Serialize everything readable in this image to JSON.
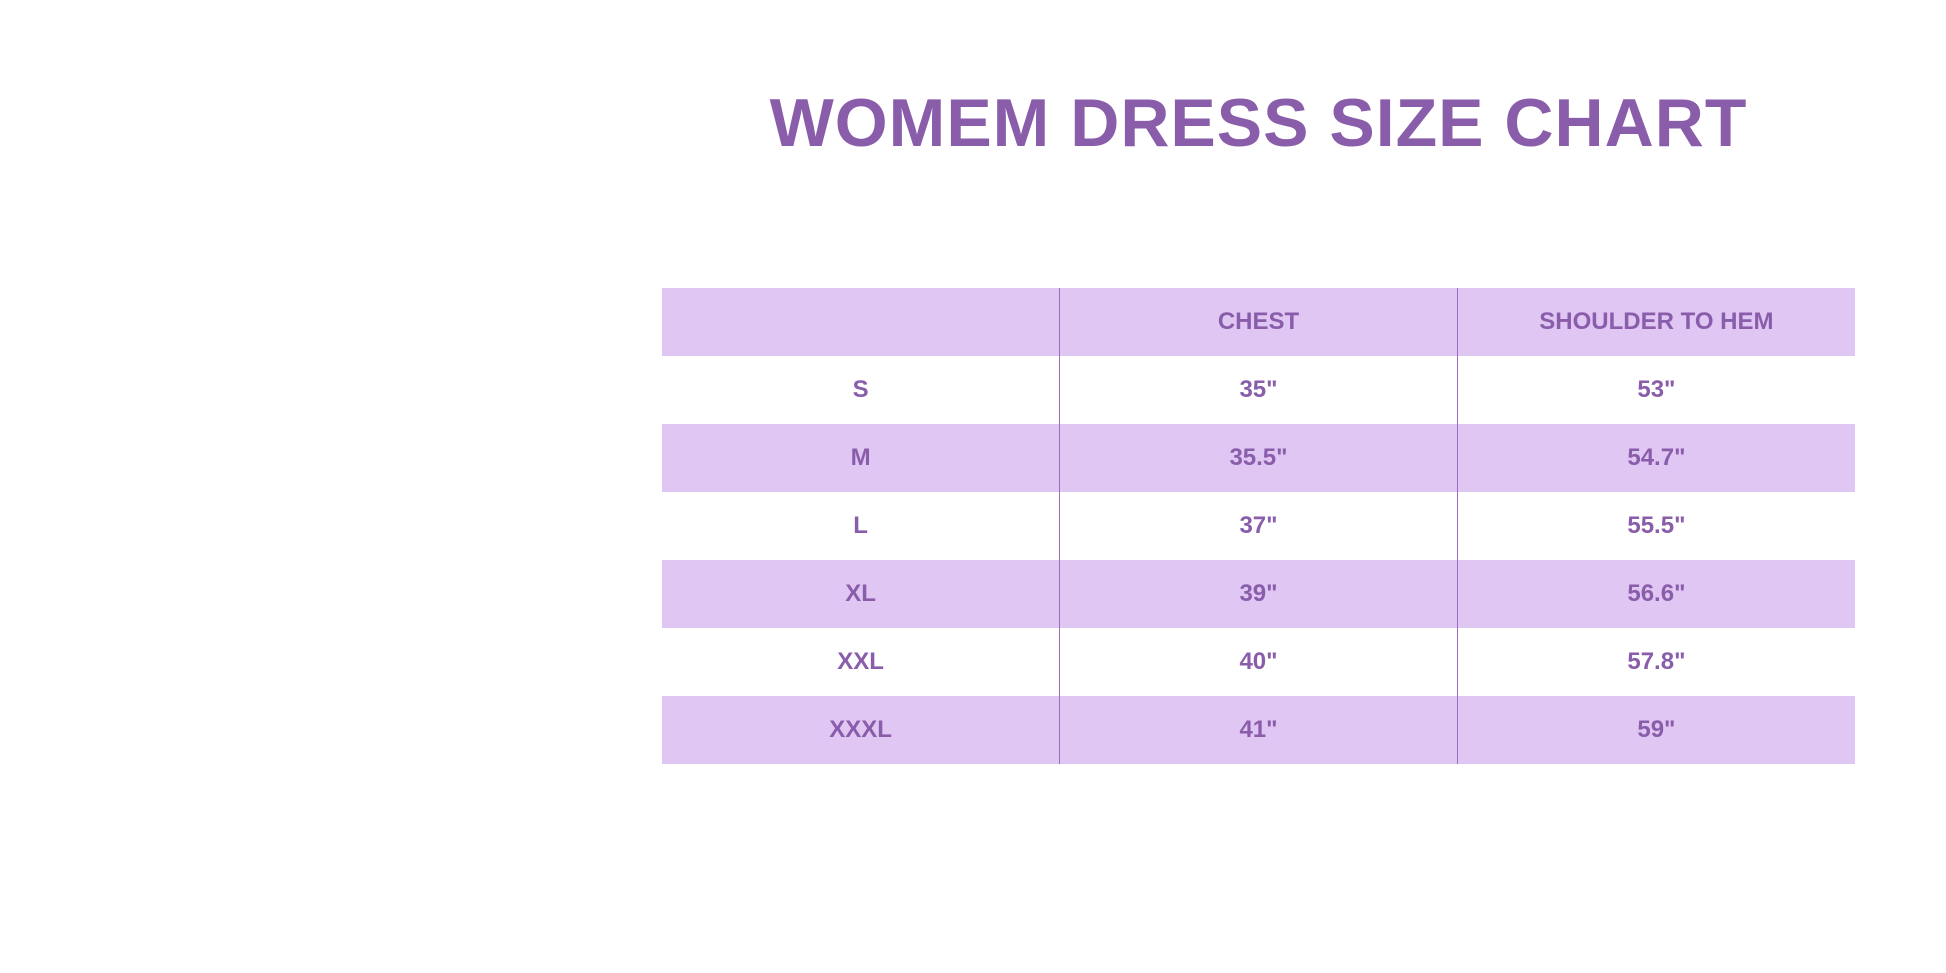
{
  "title": "WOMEM DRESS SIZE CHART",
  "colors": {
    "text": "#8A5DAB",
    "band": "#E0C6F3"
  },
  "table": {
    "headers": [
      "",
      "CHEST",
      "SHOULDER TO HEM"
    ],
    "rows": [
      [
        "S",
        "35\"",
        "53\""
      ],
      [
        "M",
        "35.5\"",
        "54.7\""
      ],
      [
        "L",
        "37\"",
        "55.5\""
      ],
      [
        "XL",
        "39\"",
        "56.6\""
      ],
      [
        "XXL",
        "40\"",
        "57.8\""
      ],
      [
        "XXXL",
        "41\"",
        "59\""
      ]
    ]
  }
}
